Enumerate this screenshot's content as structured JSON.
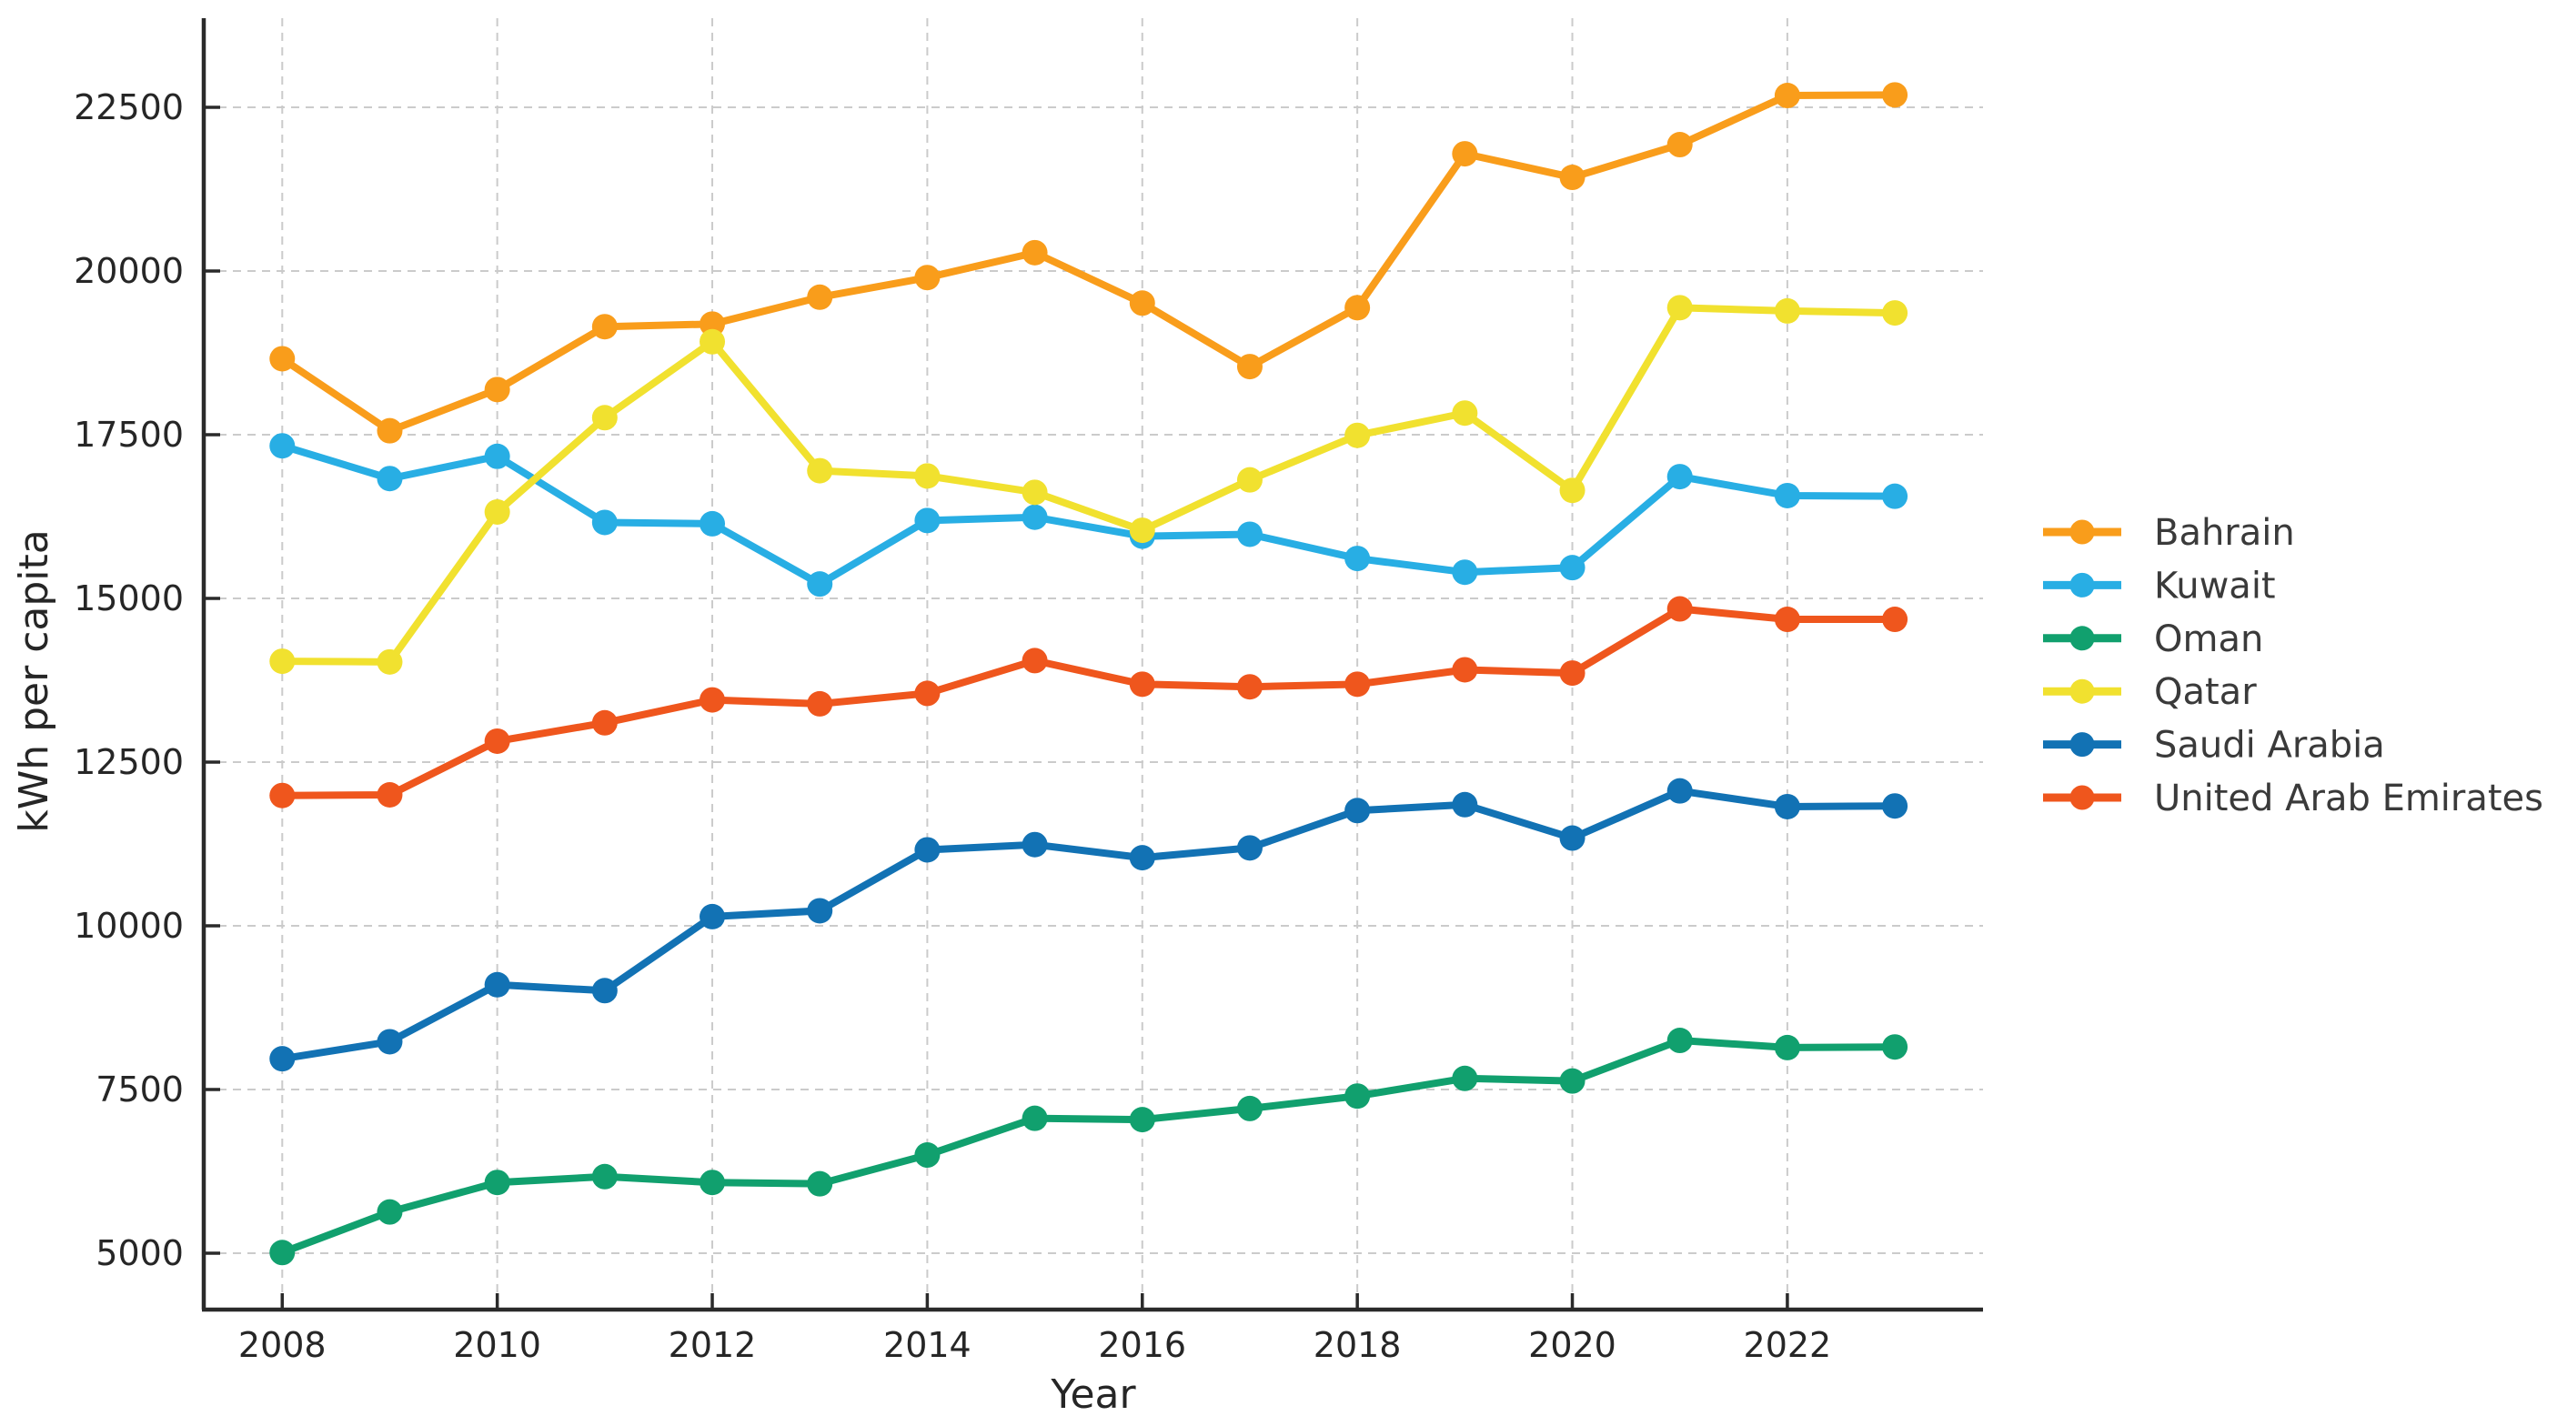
{
  "figure": {
    "background": "#ffffff",
    "axis_color": "#2a2a2a",
    "tick_label_color": "#262626",
    "grid_color": "#cbcbcb",
    "legend_text_color": "#3a3a3a"
  },
  "chart_data": {
    "type": "line",
    "title": "",
    "xlabel": "Year",
    "ylabel": "kWh per capita",
    "grid": true,
    "legend_position": "right",
    "xlim": [
      2007.27,
      2023.82
    ],
    "ylim": [
      4139,
      23861
    ],
    "x_ticks": [
      2008,
      2010,
      2012,
      2014,
      2016,
      2018,
      2020,
      2022
    ],
    "y_ticks": [
      5000,
      7500,
      10000,
      12500,
      15000,
      17500,
      20000,
      22500
    ],
    "x": [
      2008,
      2009,
      2010,
      2011,
      2012,
      2013,
      2014,
      2015,
      2016,
      2017,
      2018,
      2019,
      2020,
      2021,
      2022,
      2023
    ],
    "series": [
      {
        "name": "Bahrain",
        "color": "#F99D1B",
        "values": [
          18660,
          17560,
          18190,
          19150,
          19190,
          19600,
          19900,
          20280,
          19510,
          18540,
          19440,
          21790,
          21430,
          21930,
          22680,
          22690
        ]
      },
      {
        "name": "Kuwait",
        "color": "#28AEE4",
        "values": [
          17330,
          16830,
          17170,
          16160,
          16140,
          15220,
          16190,
          16240,
          15950,
          15980,
          15610,
          15400,
          15470,
          16860,
          16570,
          16560
        ]
      },
      {
        "name": "Oman",
        "color": "#11A06E",
        "values": [
          5010,
          5630,
          6080,
          6170,
          6080,
          6060,
          6500,
          7060,
          7040,
          7210,
          7400,
          7670,
          7630,
          8250,
          8140,
          8150
        ]
      },
      {
        "name": "Qatar",
        "color": "#F1E12F",
        "values": [
          14040,
          14030,
          16320,
          17760,
          18920,
          16950,
          16870,
          16620,
          16040,
          16810,
          17490,
          17830,
          16650,
          19440,
          19390,
          19360
        ]
      },
      {
        "name": "Saudi Arabia",
        "color": "#1272B4",
        "values": [
          7970,
          8230,
          9100,
          9010,
          10140,
          10230,
          11160,
          11240,
          11040,
          11190,
          11760,
          11850,
          11340,
          12060,
          11820,
          11830
        ]
      },
      {
        "name": "United Arab Emirates",
        "color": "#EF561D",
        "values": [
          11990,
          12000,
          12820,
          13100,
          13450,
          13390,
          13550,
          14050,
          13690,
          13650,
          13690,
          13910,
          13860,
          14840,
          14680,
          14680
        ]
      }
    ]
  }
}
